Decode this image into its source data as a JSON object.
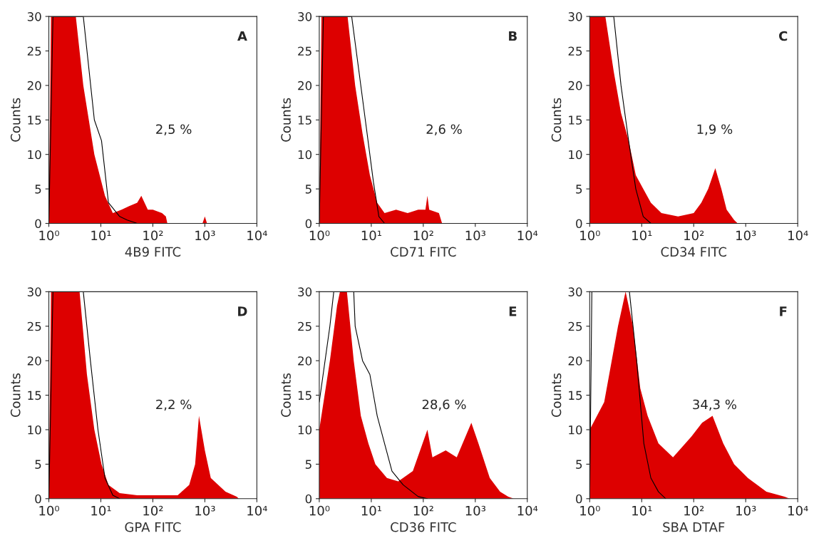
{
  "chart_data": [
    {
      "type": "area",
      "xlabel": "4B9 FITC",
      "ylabel": "Counts",
      "annotations": [
        "A",
        "2,5 %"
      ],
      "log": "x",
      "xlim": [
        1,
        10000
      ],
      "xticks": [
        {
          "value": 1,
          "label": "10⁰"
        },
        {
          "value": 10,
          "label": "10¹"
        },
        {
          "value": 100,
          "label": "10²"
        },
        {
          "value": 1000,
          "label": "10³"
        },
        {
          "value": 10000,
          "label": "10⁴"
        }
      ],
      "ylim": [
        0,
        30
      ],
      "yticks": [
        0,
        5,
        10,
        15,
        20,
        25,
        30
      ],
      "grid": false,
      "legend": false,
      "series": [
        {
          "color": "#dd0000",
          "x": [
            1,
            1.1,
            3.3,
            4.6,
            7.5,
            12,
            17,
            25,
            35,
            50,
            60,
            80,
            100,
            150,
            178,
            190,
            900,
            1000,
            1100
          ],
          "values": [
            0,
            30,
            30,
            20,
            10,
            4,
            1.5,
            2,
            2.5,
            3,
            4,
            2,
            2,
            1.5,
            1,
            0,
            0,
            1,
            0
          ]
        },
        {
          "type": "line",
          "color": "#000000",
          "x": [
            1,
            1.2,
            4.6,
            7.5,
            10.3,
            14,
            23,
            32,
            50
          ],
          "values": [
            0,
            30,
            30,
            15,
            12,
            3,
            1,
            0.5,
            0
          ]
        }
      ]
    },
    {
      "type": "area",
      "xlabel": "CD71 FITC",
      "ylabel": "Counts",
      "annotations": [
        "B",
        "2,6 %"
      ],
      "log": "x",
      "xlim": [
        1,
        10000
      ],
      "xticks": [
        {
          "value": 1,
          "label": "10⁰"
        },
        {
          "value": 10,
          "label": "10¹"
        },
        {
          "value": 100,
          "label": "10²"
        },
        {
          "value": 1000,
          "label": "10³"
        },
        {
          "value": 10000,
          "label": "10⁴"
        }
      ],
      "ylim": [
        0,
        30
      ],
      "yticks": [
        0,
        5,
        10,
        15,
        20,
        25,
        30
      ],
      "grid": false,
      "legend": false,
      "series": [
        {
          "color": "#dd0000",
          "x": [
            1,
            1.1,
            3.5,
            4.9,
            6.8,
            9.4,
            13,
            18,
            30,
            50,
            80,
            110,
            120,
            130,
            200,
            230
          ],
          "values": [
            0,
            30,
            30,
            20,
            13,
            7,
            3,
            1.5,
            2,
            1.5,
            2,
            2,
            4,
            2,
            1.5,
            0
          ]
        },
        {
          "type": "line",
          "color": "#000000",
          "x": [
            1,
            1.2,
            4.2,
            5.8,
            8,
            11,
            14,
            18
          ],
          "values": [
            0,
            30,
            30,
            22,
            14,
            6,
            1,
            0
          ]
        }
      ]
    },
    {
      "type": "area",
      "xlabel": "CD34 FITC",
      "ylabel": "Counts",
      "annotations": [
        "C",
        "1,9 %"
      ],
      "log": "x",
      "xlim": [
        1,
        10000
      ],
      "xticks": [
        {
          "value": 1,
          "label": "10⁰"
        },
        {
          "value": 10,
          "label": "10¹"
        },
        {
          "value": 100,
          "label": "10²"
        },
        {
          "value": 1000,
          "label": "10³"
        },
        {
          "value": 10000,
          "label": "10⁴"
        }
      ],
      "ylim": [
        0,
        30
      ],
      "yticks": [
        0,
        5,
        10,
        15,
        20,
        25,
        30
      ],
      "grid": false,
      "legend": false,
      "series": [
        {
          "color": "#dd0000",
          "x": [
            1,
            2,
            2.9,
            4,
            5.6,
            7.7,
            10.7,
            15,
            24,
            50,
            100,
            140,
            190,
            260,
            340,
            430,
            600,
            700
          ],
          "values": [
            30,
            30,
            22,
            16,
            12,
            7,
            5,
            3,
            1.5,
            1,
            1.5,
            3,
            5,
            8,
            5,
            2,
            0.5,
            0
          ]
        },
        {
          "type": "line",
          "color": "#000000",
          "x": [
            1,
            2.9,
            4,
            5.6,
            7.7,
            10.7,
            15
          ],
          "values": [
            30,
            30,
            20,
            12,
            5,
            1,
            0
          ]
        }
      ]
    },
    {
      "type": "area",
      "xlabel": "GPA FITC",
      "ylabel": "Counts",
      "annotations": [
        "D",
        "2,2 %"
      ],
      "log": "x",
      "xlim": [
        1,
        10000
      ],
      "xticks": [
        {
          "value": 1,
          "label": "10⁰"
        },
        {
          "value": 10,
          "label": "10¹"
        },
        {
          "value": 100,
          "label": "10²"
        },
        {
          "value": 1000,
          "label": "10³"
        },
        {
          "value": 10000,
          "label": "10⁴"
        }
      ],
      "ylim": [
        0,
        30
      ],
      "yticks": [
        0,
        5,
        10,
        15,
        20,
        25,
        30
      ],
      "grid": false,
      "legend": false,
      "series": [
        {
          "color": "#dd0000",
          "x": [
            1,
            1.1,
            3.9,
            5.4,
            7.5,
            10.3,
            14,
            23,
            50,
            300,
            500,
            650,
            770,
            1000,
            1300,
            2500,
            4100,
            4500
          ],
          "values": [
            0,
            30,
            30,
            18,
            10,
            5,
            2,
            0.8,
            0.5,
            0.5,
            2,
            5,
            12,
            7,
            3,
            1,
            0.3,
            0
          ]
        },
        {
          "type": "line",
          "color": "#000000",
          "x": [
            1,
            1.2,
            4.6,
            6.3,
            8.8,
            12,
            17,
            23
          ],
          "values": [
            0,
            30,
            30,
            20,
            10,
            3,
            0.5,
            0
          ]
        }
      ]
    },
    {
      "type": "area",
      "xlabel": "CD36 FITC",
      "ylabel": "Counts",
      "annotations": [
        "E",
        "28,6 %"
      ],
      "log": "x",
      "xlim": [
        1,
        10000
      ],
      "xticks": [
        {
          "value": 1,
          "label": "10⁰"
        },
        {
          "value": 10,
          "label": "10¹"
        },
        {
          "value": 100,
          "label": "10²"
        },
        {
          "value": 1000,
          "label": "10³"
        },
        {
          "value": 10000,
          "label": "10⁴"
        }
      ],
      "ylim": [
        0,
        30
      ],
      "yticks": [
        0,
        5,
        10,
        15,
        20,
        25,
        30
      ],
      "grid": false,
      "legend": false,
      "series": [
        {
          "color": "#dd0000",
          "x": [
            1,
            1.6,
            2.2,
            2.5,
            3.4,
            4.6,
            6.3,
            8.8,
            12,
            20,
            33,
            63,
            120,
            150,
            270,
            440,
            840,
            1150,
            1900,
            3000,
            4300,
            5500
          ],
          "values": [
            10,
            20,
            28,
            30,
            30,
            20,
            12,
            8,
            5,
            3,
            2.5,
            4,
            10,
            6,
            7,
            6,
            11,
            8,
            3,
            1,
            0.3,
            0
          ]
        },
        {
          "type": "line",
          "color": "#000000",
          "x": [
            1,
            1.6,
            1.9,
            4.6,
            4.9,
            6.8,
            9.4,
            13,
            18,
            25,
            41,
            80,
            120
          ],
          "values": [
            14,
            25,
            30,
            30,
            25,
            20,
            18,
            12,
            8,
            4,
            2,
            0.3,
            0
          ]
        }
      ]
    },
    {
      "type": "area",
      "xlabel": "SBA DTAF",
      "ylabel": "Counts",
      "annotations": [
        "F",
        "34,3 %"
      ],
      "log": "x",
      "xlim": [
        1,
        10000
      ],
      "xticks": [
        {
          "value": 1,
          "label": "10⁰"
        },
        {
          "value": 10,
          "label": "10¹"
        },
        {
          "value": 100,
          "label": "10²"
        },
        {
          "value": 1000,
          "label": "10³"
        },
        {
          "value": 10000,
          "label": "10⁴"
        }
      ],
      "ylim": [
        0,
        30
      ],
      "yticks": [
        0,
        5,
        10,
        15,
        20,
        25,
        30
      ],
      "grid": false,
      "legend": false,
      "series": [
        {
          "color": "#dd0000",
          "x": [
            1,
            1.9,
            3.5,
            4.9,
            6.8,
            9.4,
            13,
            21,
            40,
            90,
            145,
            230,
            370,
            600,
            1100,
            2500,
            5600,
            7000
          ],
          "values": [
            10,
            14,
            25,
            30,
            25,
            16,
            12,
            8,
            6,
            9,
            11,
            12,
            8,
            5,
            3,
            1,
            0.3,
            0
          ]
        },
        {
          "type": "line",
          "color": "#000000",
          "x": [
            1,
            1.1,
            5.8,
            8,
            11,
            15,
            21,
            29
          ],
          "values": [
            0,
            30,
            30,
            20,
            8,
            3,
            1,
            0
          ]
        }
      ]
    }
  ]
}
